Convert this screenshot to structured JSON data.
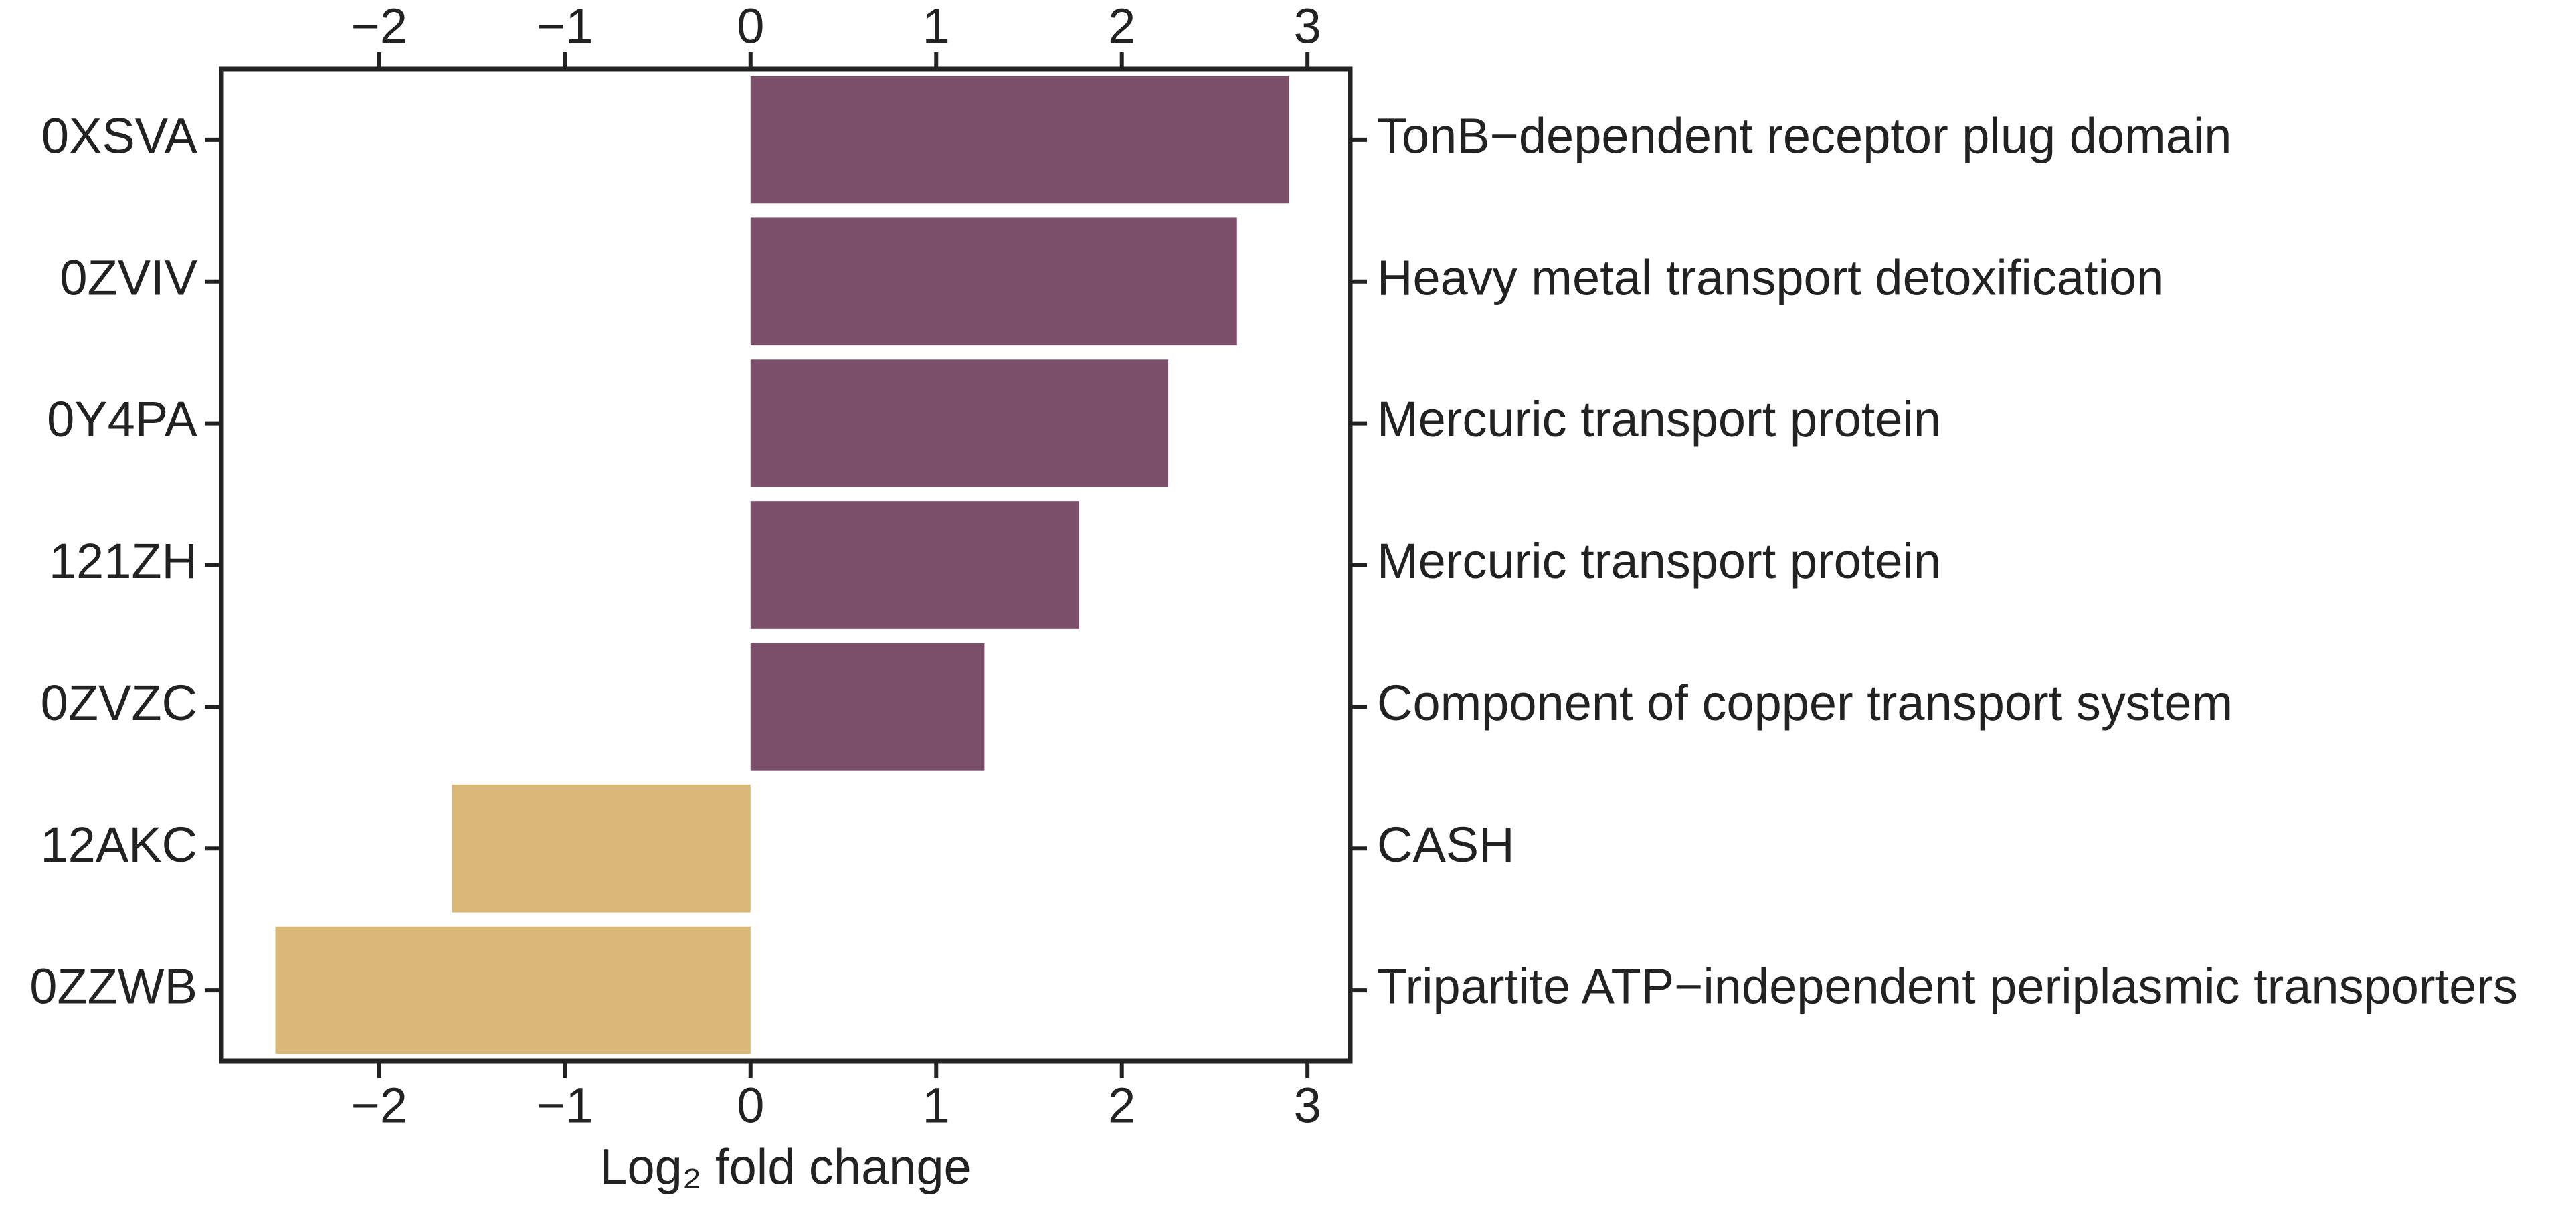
{
  "chart_data": {
    "type": "barh",
    "x_label": "Log₂ fold change",
    "categories": [
      "0XSVA",
      "0ZVIV",
      "0Y4PA",
      "121ZH",
      "0ZVZC",
      "12AKC",
      "0ZZWB"
    ],
    "right_labels": [
      "TonB−dependent receptor plug domain",
      "Heavy metal transport detoxification",
      "Mercuric transport protein",
      "Mercuric transport protein",
      "Component of copper transport system",
      "CASH",
      "Tripartite ATP−independent periplasmic transporters"
    ],
    "values": [
      2.9,
      2.62,
      2.25,
      1.77,
      1.26,
      -1.61,
      -2.56
    ],
    "colors": [
      "#7b4e6a",
      "#7b4e6a",
      "#7b4e6a",
      "#7b4e6a",
      "#7b4e6a",
      "#d9b877",
      "#d9b877"
    ],
    "xlim": [
      -2.85,
      3.23
    ],
    "xticks": [
      {
        "value": -2,
        "label": "−2"
      },
      {
        "value": -1,
        "label": "−1"
      },
      0,
      1,
      2,
      3
    ]
  }
}
